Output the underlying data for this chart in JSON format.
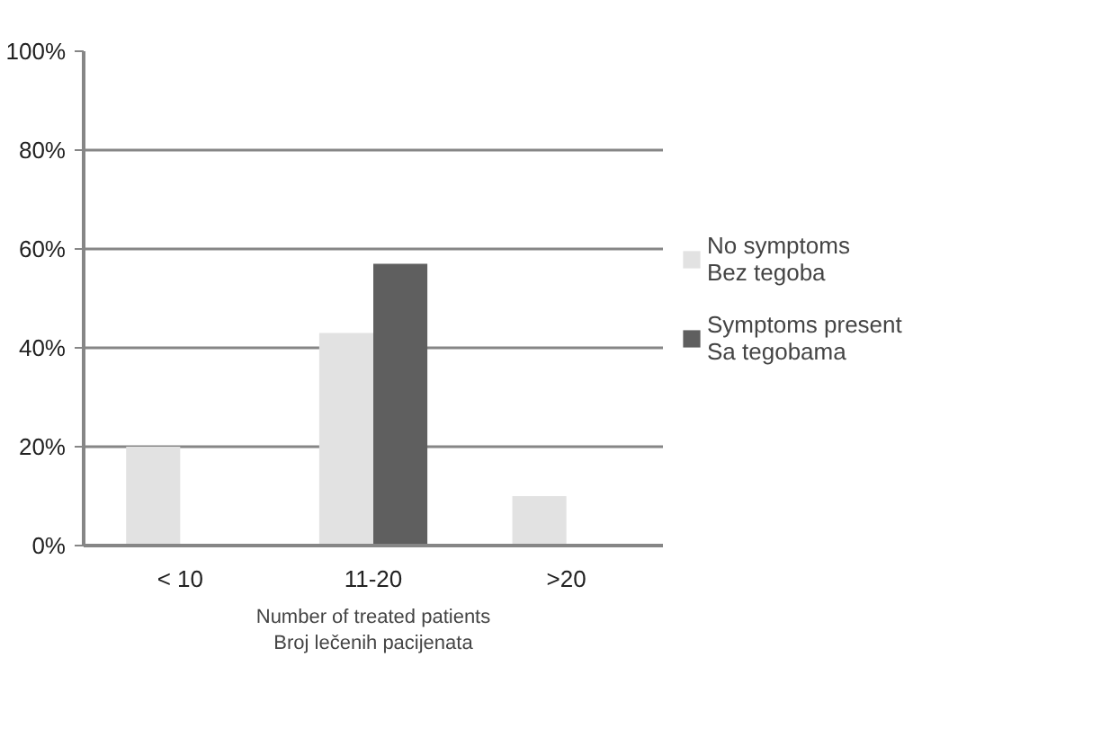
{
  "chart_data": {
    "type": "bar",
    "xlabel": "Number of treated patients\nBroj lečenih pacijenata",
    "categories": [
      "< 10",
      "11-20",
      ">20"
    ],
    "series": [
      {
        "name": "No symptoms\nBez tegoba",
        "color": "#e2e2e2",
        "values": [
          20,
          43,
          10
        ]
      },
      {
        "name": "Symptoms present\nSa tegobama",
        "color": "#5f5f5f",
        "values": [
          0,
          57,
          0
        ]
      }
    ],
    "ylim": [
      0,
      100
    ],
    "yticks": [
      {
        "value": 0,
        "label": "0%"
      },
      {
        "value": 20,
        "label": "20%"
      },
      {
        "value": 40,
        "label": "40%"
      },
      {
        "value": 60,
        "label": "60%"
      },
      {
        "value": 80,
        "label": "80%"
      },
      {
        "value": 100,
        "label": "100%"
      }
    ],
    "grid": "y",
    "legend": "right"
  }
}
